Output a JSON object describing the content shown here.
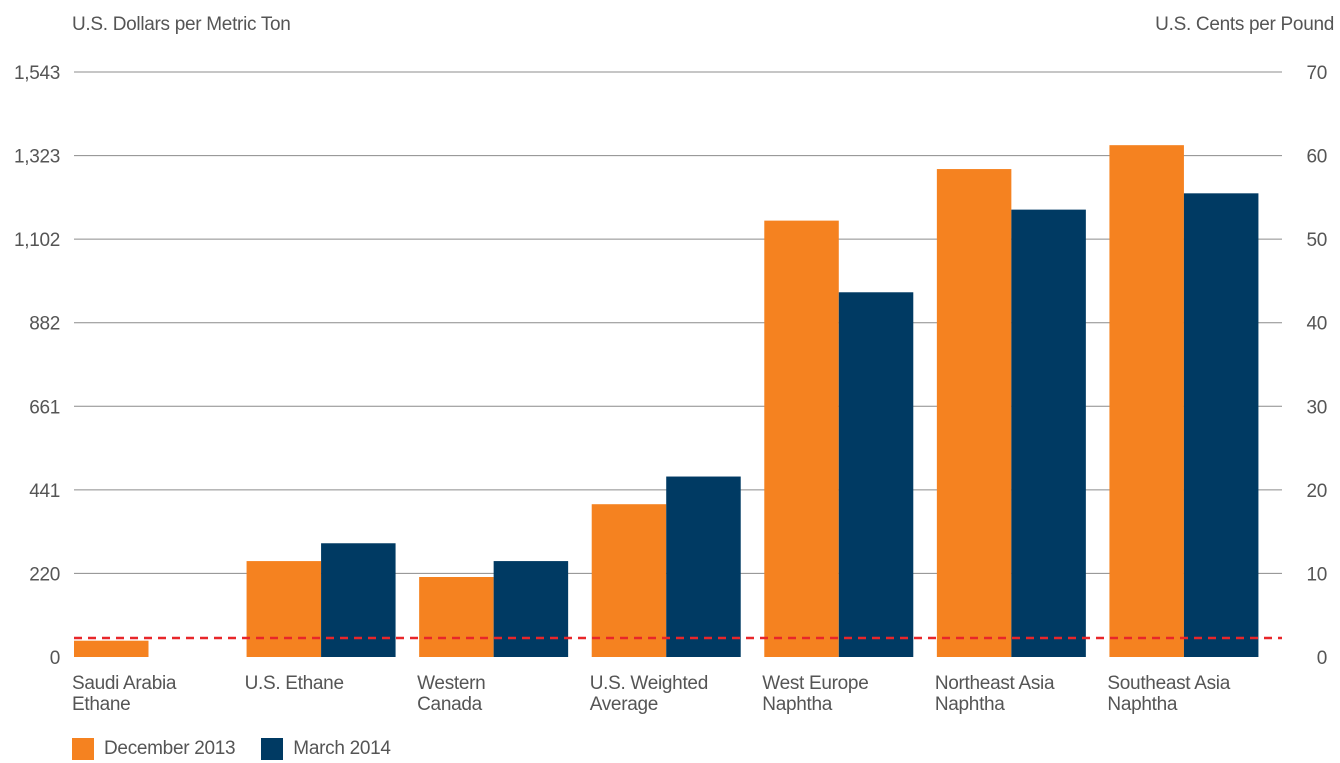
{
  "chart_data": {
    "type": "bar",
    "ylabel": "U.S. Dollars per Metric Ton",
    "ylabel_right": "U.S. Cents per Pound",
    "ylim": [
      0,
      1543
    ],
    "y_ticks": [
      "0",
      "220",
      "441",
      "661",
      "882",
      "1,102",
      "1,323",
      "1,543"
    ],
    "y2lim": [
      0,
      70
    ],
    "y2_ticks": [
      "0",
      "10",
      "20",
      "30",
      "40",
      "50",
      "60",
      "70"
    ],
    "categories": [
      [
        "Saudi Arabia",
        "Ethane"
      ],
      [
        "U.S. Ethane"
      ],
      [
        "Western",
        "Canada"
      ],
      [
        "U.S. Weighted",
        "Average"
      ],
      [
        "West Europe",
        "Naphtha"
      ],
      [
        "Northeast Asia",
        "Naphtha"
      ],
      [
        "Southeast Asia",
        "Naphtha"
      ]
    ],
    "series": [
      {
        "name": "December 2013",
        "color": "#f58220",
        "values": [
          43,
          253,
          211,
          403,
          1151,
          1287,
          1350
        ]
      },
      {
        "name": "March 2014",
        "color": "#003a63",
        "values": [
          null,
          300,
          253,
          476,
          962,
          1180,
          1223
        ]
      }
    ],
    "reference_line": {
      "value": 50,
      "color": "#e8262a",
      "style": "dashed"
    },
    "grid": true,
    "legend_position": "bottom-left"
  }
}
